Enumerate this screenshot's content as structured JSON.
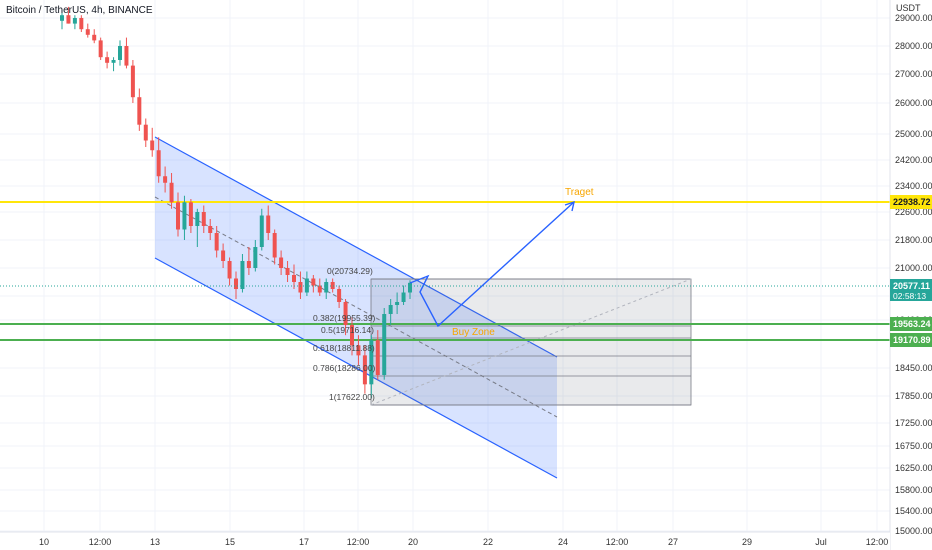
{
  "header": {
    "title": "Bitcoin / TetherUS, 4h, BINANCE"
  },
  "chart_data": {
    "type": "candlestick",
    "title": "Bitcoin / TetherUS, 4h, BINANCE",
    "y_axis": {
      "unit": "USDT",
      "ticks": [
        29000,
        28000,
        27000,
        26000,
        25000,
        24200,
        23400,
        22600,
        21800,
        21000,
        20200,
        19400,
        18450,
        17850,
        17250,
        16750,
        16250,
        15800,
        15400,
        15000
      ],
      "tick_labels": [
        "29000.00",
        "28000.00",
        "27000.00",
        "26000.00",
        "25000.00",
        "24200.00",
        "23400.00",
        "22600.00",
        "21800.00",
        "21000.00",
        "20200.00",
        "19400.00",
        "18450.00",
        "17850.00",
        "17250.00",
        "16750.00",
        "16250.00",
        "15800.00",
        "15400.00",
        "15000.00"
      ],
      "range": [
        15000,
        29500
      ]
    },
    "x_axis": {
      "tick_labels": [
        "10",
        "12:00",
        "13",
        "15",
        "17",
        "12:00",
        "20",
        "22",
        "24",
        "12:00",
        "27",
        "29",
        "Jul",
        "12:00"
      ]
    },
    "candles": [
      {
        "o": 28900,
        "h": 29300,
        "l": 28600,
        "c": 29100
      },
      {
        "o": 29100,
        "h": 29400,
        "l": 28800,
        "c": 28800
      },
      {
        "o": 28800,
        "h": 29100,
        "l": 28600,
        "c": 29000
      },
      {
        "o": 29000,
        "h": 29100,
        "l": 28500,
        "c": 28600
      },
      {
        "o": 28600,
        "h": 28800,
        "l": 28300,
        "c": 28400
      },
      {
        "o": 28400,
        "h": 28600,
        "l": 28100,
        "c": 28200
      },
      {
        "o": 28200,
        "h": 28300,
        "l": 27500,
        "c": 27600
      },
      {
        "o": 27600,
        "h": 27800,
        "l": 27200,
        "c": 27400
      },
      {
        "o": 27400,
        "h": 27600,
        "l": 27100,
        "c": 27500
      },
      {
        "o": 27500,
        "h": 28200,
        "l": 27300,
        "c": 28000
      },
      {
        "o": 28000,
        "h": 28300,
        "l": 27200,
        "c": 27300
      },
      {
        "o": 27300,
        "h": 27500,
        "l": 26000,
        "c": 26200
      },
      {
        "o": 26200,
        "h": 26500,
        "l": 25100,
        "c": 25300
      },
      {
        "o": 25300,
        "h": 25500,
        "l": 24600,
        "c": 24800
      },
      {
        "o": 24800,
        "h": 25200,
        "l": 24300,
        "c": 24500
      },
      {
        "o": 24500,
        "h": 24900,
        "l": 23500,
        "c": 23700
      },
      {
        "o": 23700,
        "h": 24000,
        "l": 23200,
        "c": 23500
      },
      {
        "o": 23500,
        "h": 23800,
        "l": 22700,
        "c": 22900
      },
      {
        "o": 22900,
        "h": 23200,
        "l": 21900,
        "c": 22100
      },
      {
        "o": 22100,
        "h": 23100,
        "l": 21800,
        "c": 22900
      },
      {
        "o": 22900,
        "h": 23000,
        "l": 22000,
        "c": 22200
      },
      {
        "o": 22200,
        "h": 22700,
        "l": 21600,
        "c": 22600
      },
      {
        "o": 22600,
        "h": 22800,
        "l": 22000,
        "c": 22200
      },
      {
        "o": 22200,
        "h": 22400,
        "l": 21800,
        "c": 22000
      },
      {
        "o": 22000,
        "h": 22200,
        "l": 21300,
        "c": 21500
      },
      {
        "o": 21500,
        "h": 21700,
        "l": 21000,
        "c": 21200
      },
      {
        "o": 21200,
        "h": 21300,
        "l": 20500,
        "c": 20700
      },
      {
        "o": 20700,
        "h": 20900,
        "l": 20100,
        "c": 20400
      },
      {
        "o": 20400,
        "h": 21400,
        "l": 20300,
        "c": 21200
      },
      {
        "o": 21200,
        "h": 21600,
        "l": 20800,
        "c": 21000
      },
      {
        "o": 21000,
        "h": 21800,
        "l": 20900,
        "c": 21600
      },
      {
        "o": 21600,
        "h": 22700,
        "l": 21500,
        "c": 22500
      },
      {
        "o": 22500,
        "h": 22800,
        "l": 21800,
        "c": 22000
      },
      {
        "o": 22000,
        "h": 22100,
        "l": 21100,
        "c": 21300
      },
      {
        "o": 21300,
        "h": 21500,
        "l": 20800,
        "c": 21000
      },
      {
        "o": 21000,
        "h": 21200,
        "l": 20600,
        "c": 20800
      },
      {
        "o": 20800,
        "h": 21100,
        "l": 20400,
        "c": 20600
      },
      {
        "o": 20600,
        "h": 20900,
        "l": 20100,
        "c": 20300
      },
      {
        "o": 20300,
        "h": 20900,
        "l": 20200,
        "c": 20700
      },
      {
        "o": 20700,
        "h": 20800,
        "l": 20300,
        "c": 20500
      },
      {
        "o": 20500,
        "h": 20700,
        "l": 20200,
        "c": 20300
      },
      {
        "o": 20300,
        "h": 20700,
        "l": 20100,
        "c": 20600
      },
      {
        "o": 20600,
        "h": 20700,
        "l": 20300,
        "c": 20400
      },
      {
        "o": 20400,
        "h": 20500,
        "l": 19800,
        "c": 20000
      },
      {
        "o": 20000,
        "h": 20100,
        "l": 19100,
        "c": 19300
      },
      {
        "o": 19300,
        "h": 19500,
        "l": 18700,
        "c": 18900
      },
      {
        "o": 18900,
        "h": 19100,
        "l": 18500,
        "c": 18700
      },
      {
        "o": 18700,
        "h": 18900,
        "l": 17900,
        "c": 18100
      },
      {
        "o": 18100,
        "h": 19100,
        "l": 17800,
        "c": 19000
      },
      {
        "o": 19000,
        "h": 19200,
        "l": 18200,
        "c": 18300
      },
      {
        "o": 18300,
        "h": 19800,
        "l": 18200,
        "c": 19600
      },
      {
        "o": 19600,
        "h": 20100,
        "l": 19300,
        "c": 19900
      },
      {
        "o": 19900,
        "h": 20300,
        "l": 19600,
        "c": 20000
      },
      {
        "o": 20000,
        "h": 20500,
        "l": 19900,
        "c": 20300
      },
      {
        "o": 20300,
        "h": 20650,
        "l": 20100,
        "c": 20577
      }
    ],
    "horizontal_levels": [
      {
        "value": 22938.72,
        "label": "22938.72",
        "color": "#ffe60a"
      },
      {
        "value": 19563.24,
        "label": "19563.24",
        "color": "#4caf50"
      },
      {
        "value": 19170.89,
        "label": "19170.89",
        "color": "#4caf50"
      }
    ],
    "fibonacci": [
      {
        "label": "0(20734.29)"
      },
      {
        "label": "0.382(19955.39)"
      },
      {
        "label": "0.5(19716.14)"
      },
      {
        "label": "0.618(18811.88)"
      },
      {
        "label": "0.786(18286.00)"
      },
      {
        "label": "1(17622.00)"
      }
    ],
    "annotations": {
      "target_label": "Traget",
      "buy_zone_label": "Buy Zone",
      "last_price": "20577.11",
      "countdown": "02:58:13"
    },
    "colors": {
      "up": "#26a69a",
      "down": "#ef5350",
      "channel": "#2962ff",
      "yellow_line": "#ffe60a",
      "green_line": "#4caf50",
      "label_orange": "#f7a600"
    }
  }
}
